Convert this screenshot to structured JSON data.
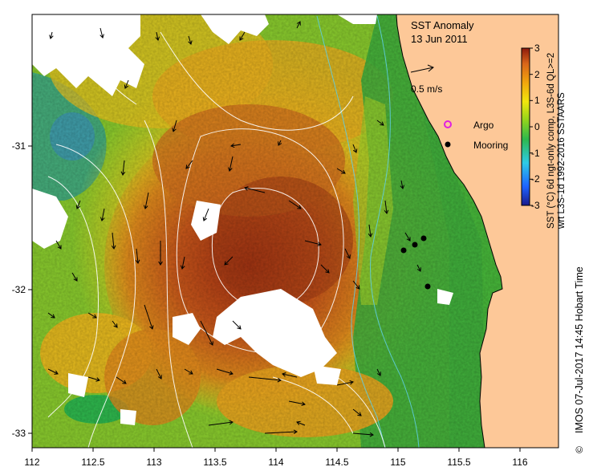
{
  "map": {
    "title": "SST Anomaly",
    "date": "13 Jun 2011",
    "scale_label": "0.5 m/s",
    "legend": {
      "argo": "Argo",
      "mooring": "Mooring"
    },
    "x_axis": {
      "ticks": [
        "112",
        "112.5",
        "113",
        "113.5",
        "114",
        "114.5",
        "115",
        "115.5",
        "116"
      ]
    },
    "y_axis": {
      "ticks": [
        "-31",
        "-32",
        "-33"
      ]
    },
    "colorbar": {
      "ticks": [
        "3",
        "2",
        "1",
        "0",
        "-1",
        "-2",
        "-3"
      ],
      "label_line1": "SST (°C) 6d ngt-only comp, L3S-6d QL>=2",
      "label_line2": "wrt L3S-1d 1992-2016 SSTAARS",
      "colors": [
        "#1a1a8c",
        "#1e63ff",
        "#2ecbe6",
        "#2eb84d",
        "#99d61a",
        "#f2e60d",
        "#f2a60d",
        "#d9661a",
        "#8c1a0d"
      ]
    },
    "credit": "IMOS 07-Jul-2017 14:45 Hobart Time",
    "copyright_symbol": "©",
    "colors": {
      "land": "#fdc898",
      "ocean_warm": "#d9661a",
      "ocean_green": "#47b83a"
    }
  }
}
